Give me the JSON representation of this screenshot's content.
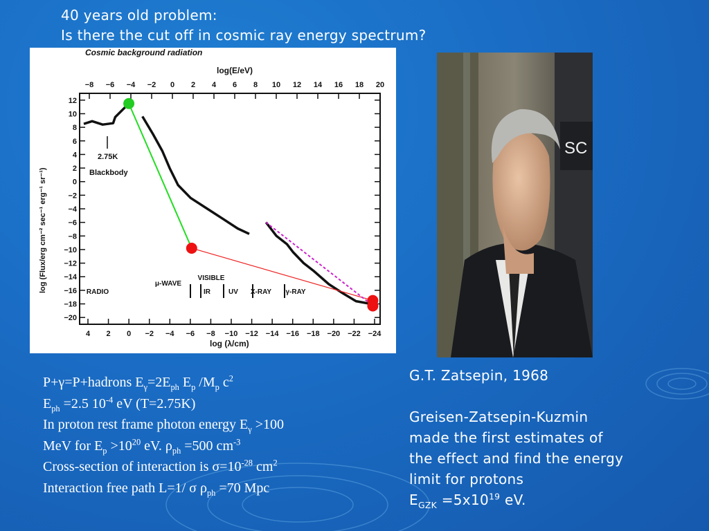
{
  "title": {
    "line1": "40 years old problem:",
    "line2": "Is there the cut off in cosmic ray energy spectrum?"
  },
  "chart_data": {
    "type": "line",
    "title": "Cosmic background radiation",
    "top_axis_label": "log(E/eV)",
    "top_ticks": [
      "−8",
      "−6",
      "−4",
      "−2",
      "0",
      "2",
      "4",
      "6",
      "8",
      "10",
      "12",
      "14",
      "16",
      "18",
      "20"
    ],
    "xlabel": "log (λ/cm)",
    "bottom_ticks": [
      "4",
      "2",
      "0",
      "−2",
      "−4",
      "−6",
      "−8",
      "−10",
      "−12",
      "−14",
      "−16",
      "−18",
      "−20",
      "−22",
      "−24"
    ],
    "ylabel": "log (Flux/erg cm⁻² sec⁻¹ erg⁻¹ sr⁻¹)",
    "y_ticks": [
      "12",
      "10",
      "8",
      "6",
      "4",
      "2",
      "0",
      "−2",
      "−4",
      "−6",
      "−8",
      "−10",
      "−12",
      "−14",
      "−16",
      "−18",
      "−20"
    ],
    "ylim": [
      -21,
      13
    ],
    "blackbody_label_line1": "2.75K",
    "blackbody_label_line2": "Blackbody",
    "band_labels": [
      "RADIO",
      "μ-WAVE",
      "VISIBLE",
      "IR",
      "UV",
      "X-RAY",
      "γ-RAY"
    ],
    "series": [
      {
        "points": [
          [
            3.8,
            8.5
          ],
          [
            3,
            8.9
          ],
          [
            2,
            8.4
          ],
          [
            1,
            8.6
          ],
          [
            0.8,
            9.5
          ],
          [
            -0.5,
            11.5
          ]
        ]
      },
      {
        "points": [
          [
            -1.8,
            9.6
          ],
          [
            -2.8,
            7
          ],
          [
            -3.7,
            4.5
          ],
          [
            -4.4,
            2
          ],
          [
            -5.2,
            -0.5
          ],
          [
            -6.4,
            -2.4
          ],
          [
            -8,
            -4
          ],
          [
            -9.5,
            -5.5
          ],
          [
            -10.9,
            -6.9
          ],
          [
            -12,
            -7.7
          ]
        ]
      },
      {
        "points": [
          [
            -13.6,
            -6
          ],
          [
            -14.6,
            -8
          ],
          [
            -15.6,
            -9.2
          ],
          [
            -16.2,
            -10.4
          ],
          [
            -17.2,
            -12
          ],
          [
            -18.2,
            -13.2
          ],
          [
            -19.6,
            -15.1
          ],
          [
            -21,
            -16.5
          ],
          [
            -22.2,
            -17.6
          ],
          [
            -23.6,
            -18
          ]
        ]
      }
    ],
    "highlight_points": [
      {
        "x": -0.5,
        "y": 11.5,
        "color": "#22cc22"
      },
      {
        "x": -6.5,
        "y": -9.8,
        "color": "#ee1111"
      },
      {
        "x": -23.8,
        "y": -17.5,
        "color": "#ee1111"
      },
      {
        "x": -23.8,
        "y": -18.3,
        "color": "#ee1111"
      }
    ],
    "colors": {
      "green_line": "#22dd22",
      "red_line": "#ee2222",
      "fit_line": "#cc22cc"
    }
  },
  "photo": {
    "sign_text": "SC"
  },
  "caption": {
    "author": "G.T. Zatsepin, 1968",
    "line1": "Greisen-Zatsepin-Kuzmin",
    "line2": "made the first estimates of",
    "line3": "the effect and find the energy",
    "line4": "limit for protons",
    "egzk_E": "E",
    "egzk_sub": "GZK",
    "egzk_val": " =5x10",
    "egzk_sup": "19",
    "egzk_unit": " eV."
  },
  "physics": {
    "l1_a": "P+γ=P+hadrons   E",
    "l1_sub1": "γ",
    "l1_b": "=2E",
    "l1_sub2": "ph",
    "l1_c": " E",
    "l1_sub3": "p",
    "l1_d": " /M",
    "l1_sub4": "p",
    "l1_e": " c",
    "l1_sup1": "2",
    "l2_a": "E",
    "l2_sub1": "ph",
    "l2_b": " =2.5 10",
    "l2_sup1": "-4",
    "l2_c": " eV (T=2.75K)",
    "l3_a": "In proton rest frame photon energy E",
    "l3_sub1": "γ",
    "l3_b": " >100",
    "l4_a": "MeV for E",
    "l4_sub1": "p",
    "l4_b": " >10",
    "l4_sup1": "20",
    "l4_c": " eV. ρ",
    "l4_sub2": "ph",
    "l4_d": "  =500 cm",
    "l4_sup2": "-3",
    "l5_a": "Cross-section of interaction is σ=10",
    "l5_sup1": "-28",
    "l5_b": " cm",
    "l5_sup2": "2",
    "l6_a": "Interaction free path L=1/ σ ρ",
    "l6_sub1": "ph",
    "l6_b": " =70 Mpc"
  }
}
